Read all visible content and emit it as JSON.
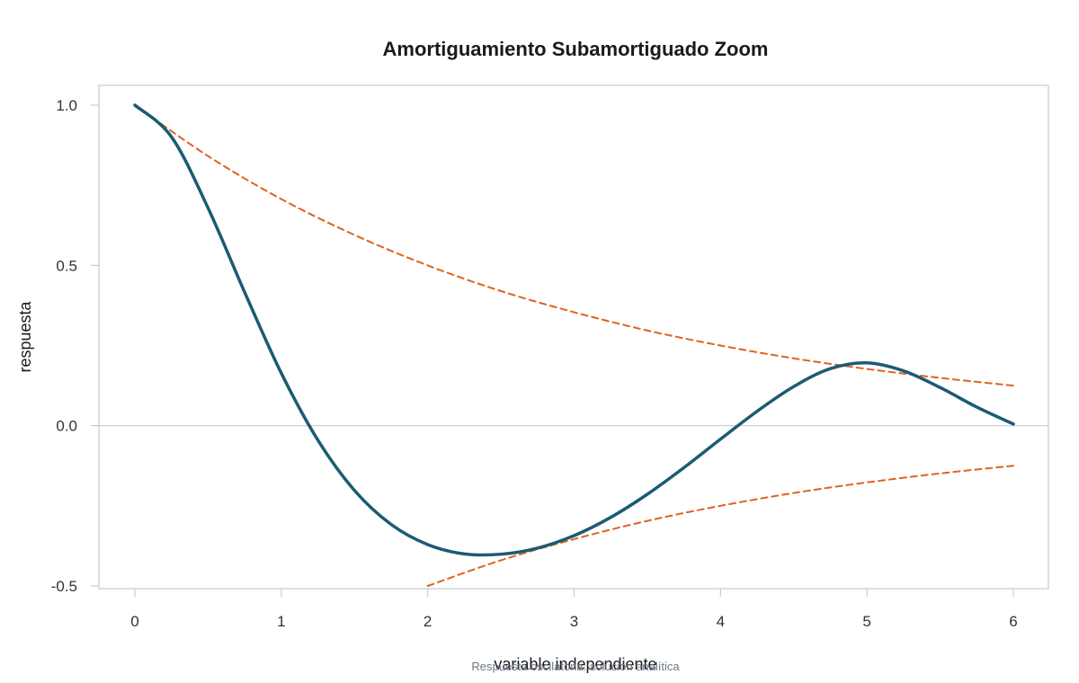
{
  "chart_data": {
    "type": "line",
    "title": "Amortiguamiento Subamortiguado Zoom",
    "xlabel": "variable independiente",
    "ylabel": "respuesta",
    "caption": "Respuesta oscilatoria: solución analítica",
    "xlim": [
      -0.25,
      6.25
    ],
    "ylim": [
      -0.5,
      1.0
    ],
    "xticks": [
      0,
      1,
      2,
      3,
      4,
      5,
      6
    ],
    "yticks": [
      -0.5,
      0.0,
      0.5,
      1.0
    ],
    "ytick_labels": [
      "-0.5",
      "0.0",
      "0.5",
      "1.0"
    ],
    "zero_line": true,
    "series": [
      {
        "role": "response",
        "color": "#1b5b74",
        "style": "solid",
        "x": [
          0,
          0.25,
          0.5,
          0.75,
          1.0,
          1.25,
          1.5,
          1.75,
          2.0,
          2.25,
          2.5,
          2.75,
          3.0,
          3.25,
          3.5,
          3.75,
          4.0,
          4.25,
          4.5,
          4.75,
          5.0,
          5.25,
          5.5,
          5.75,
          6.0
        ],
        "y": [
          1.0,
          0.901,
          0.679,
          0.416,
          0.164,
          -0.045,
          -0.202,
          -0.308,
          -0.371,
          -0.4,
          -0.401,
          -0.382,
          -0.343,
          -0.286,
          -0.214,
          -0.131,
          -0.042,
          0.045,
          0.122,
          0.178,
          0.196,
          0.171,
          0.119,
          0.058,
          0.005
        ]
      },
      {
        "role": "upper-envelope",
        "color": "#e0621e",
        "style": "dashed",
        "x": [
          0,
          0.5,
          1.0,
          1.5,
          2.0,
          2.5,
          3.0,
          3.5,
          4.0,
          4.5,
          5.0,
          5.5,
          6.0
        ],
        "y": [
          1.0,
          0.841,
          0.707,
          0.595,
          0.5,
          0.42,
          0.354,
          0.297,
          0.25,
          0.21,
          0.177,
          0.149,
          0.125
        ]
      },
      {
        "role": "lower-envelope",
        "color": "#e0621e",
        "style": "dashed",
        "x": [
          2.0,
          2.5,
          3.0,
          3.5,
          4.0,
          4.5,
          5.0,
          5.5,
          6.0
        ],
        "y": [
          -0.5,
          -0.42,
          -0.354,
          -0.297,
          -0.25,
          -0.21,
          -0.177,
          -0.149,
          -0.125
        ]
      }
    ]
  }
}
